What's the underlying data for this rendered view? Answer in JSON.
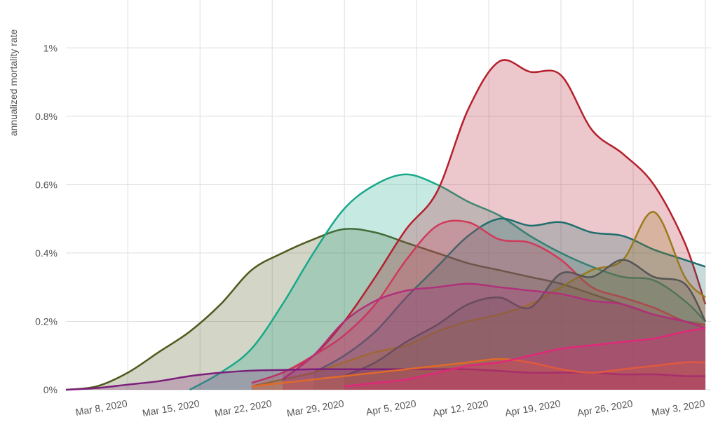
{
  "chart_data": {
    "type": "area",
    "y_label": "annualized mortality rate",
    "x": [
      "2020-03-02",
      "2020-03-05",
      "2020-03-08",
      "2020-03-11",
      "2020-03-14",
      "2020-03-17",
      "2020-03-20",
      "2020-03-23",
      "2020-03-26",
      "2020-03-29",
      "2020-04-01",
      "2020-04-04",
      "2020-04-07",
      "2020-04-10",
      "2020-04-13",
      "2020-04-16",
      "2020-04-19",
      "2020-04-22",
      "2020-04-25",
      "2020-04-28",
      "2020-05-01",
      "2020-05-03"
    ],
    "xlim": [
      "2020-03-02",
      "2020-05-03"
    ],
    "xticks": [
      {
        "value": "2020-03-08",
        "label": "Mar 8, 2020"
      },
      {
        "value": "2020-03-15",
        "label": "Mar 15, 2020"
      },
      {
        "value": "2020-03-22",
        "label": "Mar 22, 2020"
      },
      {
        "value": "2020-03-29",
        "label": "Mar 29, 2020"
      },
      {
        "value": "2020-04-05",
        "label": "Apr 5, 2020"
      },
      {
        "value": "2020-04-12",
        "label": "Apr 12, 2020"
      },
      {
        "value": "2020-04-19",
        "label": "Apr 19, 2020"
      },
      {
        "value": "2020-04-26",
        "label": "Apr 26, 2020"
      },
      {
        "value": "2020-05-03",
        "label": "May 3, 2020"
      }
    ],
    "ylim": [
      0,
      1.14
    ],
    "yticks": [
      {
        "value": 0,
        "label": "0%"
      },
      {
        "value": 0.2,
        "label": "0.2%"
      },
      {
        "value": 0.4,
        "label": "0.4%"
      },
      {
        "value": 0.6,
        "label": "0.6%"
      },
      {
        "value": 0.8,
        "label": "0.8%"
      },
      {
        "value": 1,
        "label": "1%"
      }
    ],
    "grid": true,
    "series": [
      {
        "color": "#4f5a1e",
        "values": [
          0,
          0.01,
          0.05,
          0.11,
          0.17,
          0.25,
          0.35,
          0.4,
          0.44,
          0.47,
          0.46,
          0.43,
          0.4,
          0.37,
          0.35,
          0.33,
          0.31,
          0.28,
          0.25,
          0.22,
          0.2,
          0.19
        ]
      },
      {
        "color": "#1aa88a",
        "values": [
          null,
          null,
          null,
          null,
          0,
          0.05,
          0.12,
          0.25,
          0.4,
          0.53,
          0.6,
          0.63,
          0.6,
          0.55,
          0.51,
          0.45,
          0.4,
          0.36,
          0.33,
          0.32,
          0.26,
          0.2
        ]
      },
      {
        "color": "#b5202e",
        "values": [
          null,
          null,
          null,
          null,
          null,
          null,
          null,
          0.05,
          0.1,
          0.2,
          0.33,
          0.47,
          0.58,
          0.82,
          0.96,
          0.93,
          0.92,
          0.76,
          0.69,
          0.6,
          0.43,
          0.25
        ]
      },
      {
        "color": "#1f6e6e",
        "values": [
          null,
          null,
          null,
          null,
          null,
          null,
          null,
          null,
          0.05,
          0.1,
          0.17,
          0.27,
          0.36,
          0.45,
          0.5,
          0.48,
          0.49,
          0.46,
          0.45,
          0.41,
          0.38,
          0.36
        ]
      },
      {
        "color": "#d03a5a",
        "values": [
          null,
          null,
          null,
          null,
          null,
          null,
          0.02,
          0.05,
          0.1,
          0.16,
          0.25,
          0.38,
          0.48,
          0.49,
          0.44,
          0.43,
          0.38,
          0.3,
          0.27,
          0.24,
          0.2,
          0.19
        ]
      },
      {
        "color": "#9a7a1e",
        "values": [
          null,
          null,
          null,
          null,
          null,
          null,
          0.01,
          0.03,
          0.05,
          0.08,
          0.11,
          0.13,
          0.17,
          0.2,
          0.22,
          0.25,
          0.3,
          0.35,
          0.38,
          0.52,
          0.33,
          0.27
        ]
      },
      {
        "color": "#555555",
        "values": [
          null,
          null,
          null,
          null,
          null,
          null,
          null,
          null,
          null,
          0.04,
          0.08,
          0.14,
          0.19,
          0.25,
          0.27,
          0.24,
          0.34,
          0.33,
          0.38,
          0.33,
          0.31,
          0.2
        ]
      },
      {
        "color": "#b0307a",
        "values": [
          null,
          null,
          null,
          null,
          null,
          null,
          null,
          0.03,
          0.1,
          0.2,
          0.26,
          0.29,
          0.3,
          0.31,
          0.3,
          0.29,
          0.28,
          0.26,
          0.25,
          0.22,
          0.2,
          0.18
        ]
      },
      {
        "color": "#7b1f7a",
        "values": [
          0,
          0.005,
          0.015,
          0.025,
          0.04,
          0.05,
          0.056,
          0.058,
          0.06,
          0.06,
          0.06,
          0.06,
          0.06,
          0.06,
          0.055,
          0.05,
          0.05,
          0.05,
          0.045,
          0.045,
          0.04,
          0.04
        ]
      },
      {
        "color": "#e06a2a",
        "values": [
          null,
          null,
          null,
          null,
          null,
          null,
          0.01,
          0.02,
          0.03,
          0.04,
          0.05,
          0.06,
          0.07,
          0.08,
          0.09,
          0.08,
          0.06,
          0.05,
          0.06,
          0.07,
          0.08,
          0.08
        ]
      },
      {
        "color": "#e0287a",
        "values": [
          null,
          null,
          null,
          null,
          null,
          null,
          null,
          null,
          null,
          0.01,
          0.02,
          0.03,
          0.05,
          0.07,
          0.08,
          0.1,
          0.12,
          0.13,
          0.14,
          0.15,
          0.17,
          0.18
        ]
      }
    ]
  }
}
